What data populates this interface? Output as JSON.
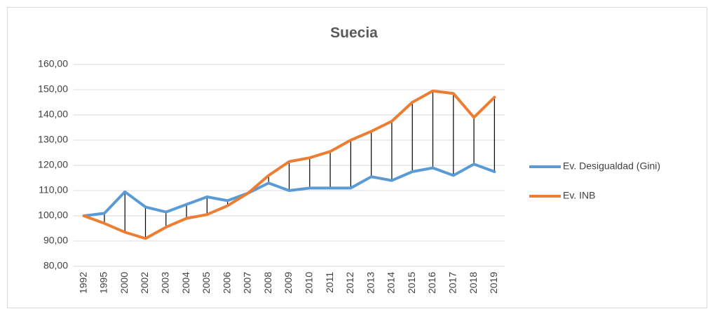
{
  "chart_data": {
    "type": "line",
    "title": "Suecia",
    "categories": [
      "1992",
      "1995",
      "2000",
      "2002",
      "2003",
      "2004",
      "2005",
      "2006",
      "2007",
      "2008",
      "2009",
      "2010",
      "2011",
      "2012",
      "2013",
      "2014",
      "2015",
      "2016",
      "2017",
      "2018",
      "2019"
    ],
    "series": [
      {
        "name": "Ev. Desigualdad (Gini)",
        "color": "#5b9bd5",
        "values": [
          100,
          101,
          109.5,
          103.5,
          101.5,
          104.5,
          107.5,
          106,
          109,
          113,
          110,
          111,
          111,
          111,
          115.5,
          114,
          117.5,
          119,
          116,
          120.5,
          117.5
        ]
      },
      {
        "name": "Ev. INB",
        "color": "#ed7d31",
        "values": [
          100,
          97,
          93.5,
          91,
          95.5,
          99,
          100.5,
          104,
          109,
          116,
          121.5,
          123,
          125.5,
          130,
          133.5,
          137.5,
          145,
          149.5,
          148.5,
          139,
          147
        ]
      }
    ],
    "ylim": [
      80,
      160
    ],
    "yticks": [
      {
        "value": 80,
        "label": "80,00"
      },
      {
        "value": 90,
        "label": "90,00"
      },
      {
        "value": 100,
        "label": "100,00"
      },
      {
        "value": 110,
        "label": "110,00"
      },
      {
        "value": 120,
        "label": "120,00"
      },
      {
        "value": 130,
        "label": "130,00"
      },
      {
        "value": 140,
        "label": "140,00"
      },
      {
        "value": 150,
        "label": "150,00"
      },
      {
        "value": 160,
        "label": "160,00"
      }
    ],
    "grid": true,
    "legend": "right",
    "drop_lines": true
  }
}
